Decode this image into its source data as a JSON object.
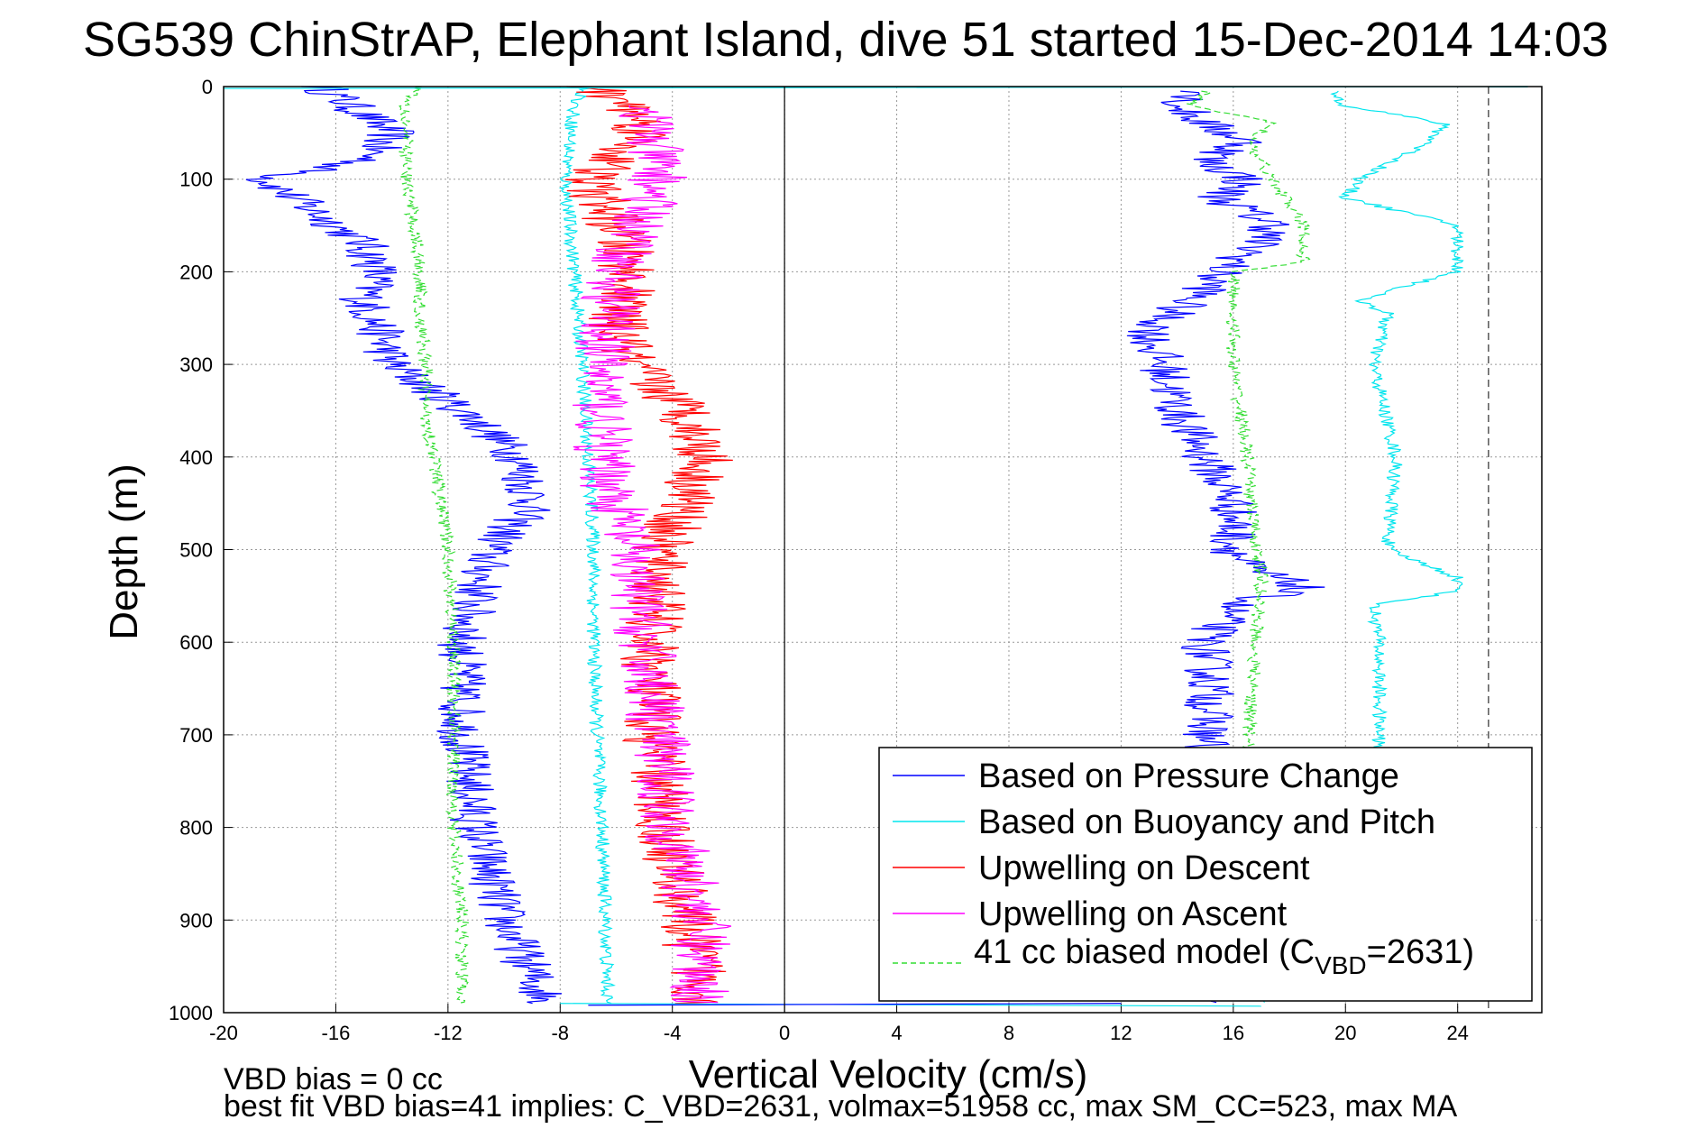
{
  "chart_data": {
    "type": "line",
    "title": "SG539 ChinStrAP, Elephant Island, dive 51 started 15-Dec-2014 14:03",
    "xlabel": "Vertical Velocity (cm/s)",
    "ylabel": "Depth (m)",
    "xlim": [
      -20,
      27
    ],
    "ylim": [
      0,
      1000
    ],
    "y_reversed": true,
    "grid": true,
    "xticks": [
      -20,
      -16,
      -12,
      -8,
      -4,
      0,
      4,
      8,
      12,
      16,
      20,
      24
    ],
    "yticks": [
      0,
      100,
      200,
      300,
      400,
      500,
      600,
      700,
      800,
      900,
      1000
    ],
    "vertical_lines": [
      0,
      25.1
    ],
    "legend_position": "bottom-right",
    "series": [
      {
        "name": "Based on Pressure Change",
        "color": "#0000ff",
        "style": "solid",
        "noise": 0.9,
        "depth": [
          0,
          20,
          50,
          80,
          100,
          130,
          170,
          200,
          230,
          260,
          300,
          330,
          360,
          400,
          450,
          500,
          550,
          600,
          700,
          800,
          900,
          960,
          990
        ],
        "velocity": [
          -16.5,
          -15.5,
          -14.0,
          -15.0,
          -18.5,
          -17.0,
          -15.0,
          -14.5,
          -15.0,
          -14.5,
          -14.0,
          -12.5,
          -11.0,
          -9.5,
          -9.0,
          -10.5,
          -11.0,
          -11.5,
          -11.5,
          -11.0,
          -10.0,
          -9.0,
          -8.5
        ],
        "ascent_depth": [
          990,
          960,
          900,
          800,
          720,
          650,
          600,
          560,
          540,
          520,
          500,
          450,
          400,
          350,
          300,
          270,
          250,
          220,
          200,
          180,
          150,
          120,
          100,
          80,
          60,
          40,
          20,
          5
        ],
        "ascent_velocity": [
          16.0,
          15.8,
          15.5,
          15.0,
          15.0,
          15.2,
          15.0,
          16.0,
          18.5,
          16.5,
          16.0,
          16.0,
          15.0,
          14.0,
          13.5,
          13.0,
          13.5,
          15.0,
          15.5,
          16.5,
          17.5,
          15.5,
          16.5,
          15.0,
          16.5,
          15.0,
          14.0,
          15.0
        ]
      },
      {
        "name": "Based on Buoyancy and Pitch",
        "color": "#00e5ee",
        "style": "solid",
        "noise": 0.25,
        "depth": [
          0,
          20,
          100,
          200,
          300,
          400,
          500,
          600,
          700,
          800,
          900,
          990
        ],
        "velocity": [
          -7.0,
          -7.5,
          -7.8,
          -7.5,
          -7.2,
          -7.0,
          -6.8,
          -6.8,
          -6.7,
          -6.5,
          -6.4,
          -6.3
        ],
        "ascent_depth": [
          990,
          900,
          800,
          720,
          600,
          560,
          545,
          530,
          500,
          400,
          300,
          245,
          230,
          200,
          150,
          120,
          100,
          60,
          40,
          20,
          5
        ],
        "ascent_velocity": [
          17.0,
          21.5,
          21.5,
          21.2,
          21.2,
          21.0,
          24.0,
          24.0,
          21.5,
          21.8,
          21.0,
          21.5,
          20.5,
          24.0,
          24.0,
          20.0,
          20.5,
          23.0,
          23.5,
          20.0,
          19.5
        ]
      },
      {
        "name": "Upwelling on Descent",
        "color": "#ff0000",
        "style": "solid",
        "noise": 1.1,
        "depth": [
          0,
          20,
          50,
          100,
          150,
          200,
          250,
          300,
          350,
          400,
          450,
          500,
          550,
          600,
          700,
          800,
          900,
          960,
          990
        ],
        "velocity": [
          -7.0,
          -5.5,
          -5.0,
          -7.0,
          -6.0,
          -5.5,
          -6.0,
          -5.5,
          -3.5,
          -2.8,
          -3.5,
          -4.5,
          -4.5,
          -4.8,
          -4.7,
          -4.3,
          -3.5,
          -3.0,
          -3.0
        ]
      },
      {
        "name": "Upwelling on Ascent",
        "color": "#ff00ff",
        "style": "solid",
        "noise": 1.1,
        "depth": [
          20,
          100,
          200,
          300,
          400,
          500,
          600,
          700,
          800,
          900,
          990
        ],
        "velocity": [
          -5.0,
          -4.5,
          -6.0,
          -6.5,
          -6.5,
          -5.5,
          -5.0,
          -4.5,
          -4.0,
          -3.0,
          -3.0
        ]
      },
      {
        "name": "41 cc biased model (CVBD=2631)",
        "color": "#33dd33",
        "style": "dashed",
        "noise": 0.25,
        "depth": [
          0,
          20,
          50,
          100,
          150,
          200,
          250,
          300,
          350,
          400,
          500,
          600,
          700,
          800,
          900,
          990
        ],
        "velocity": [
          -13.0,
          -13.5,
          -13.5,
          -13.5,
          -13.2,
          -13.0,
          -13.0,
          -12.8,
          -12.8,
          -12.5,
          -12.0,
          -11.8,
          -11.8,
          -11.8,
          -11.5,
          -11.5
        ],
        "ascent_depth": [
          990,
          900,
          800,
          720,
          600,
          530,
          500,
          400,
          300,
          200,
          190,
          150,
          60,
          40,
          20,
          5
        ],
        "ascent_velocity": [
          16.0,
          16.5,
          16.5,
          16.5,
          16.8,
          17.0,
          16.8,
          16.5,
          16.0,
          16.0,
          18.5,
          18.5,
          16.5,
          17.5,
          14.5,
          15.0
        ]
      }
    ],
    "legend": {
      "items": [
        {
          "label": "Based on Pressure Change",
          "color": "#0000ff",
          "dash": false
        },
        {
          "label": "Based on Buoyancy and Pitch",
          "color": "#00e5ee",
          "dash": false
        },
        {
          "label": "Upwelling on Descent",
          "color": "#ff0000",
          "dash": false
        },
        {
          "label": "Upwelling on Ascent",
          "color": "#ff00ff",
          "dash": false
        },
        {
          "label_prefix": "41 cc biased model (C",
          "label_sub": "VBD",
          "label_suffix": "=2631)",
          "color": "#33dd33",
          "dash": true
        }
      ]
    },
    "footnotes": [
      "VBD bias = 0 cc",
      "best fit VBD bias=41 implies: C_VBD=2631, volmax=51958 cc, max SM_CC=523, max MA"
    ]
  }
}
